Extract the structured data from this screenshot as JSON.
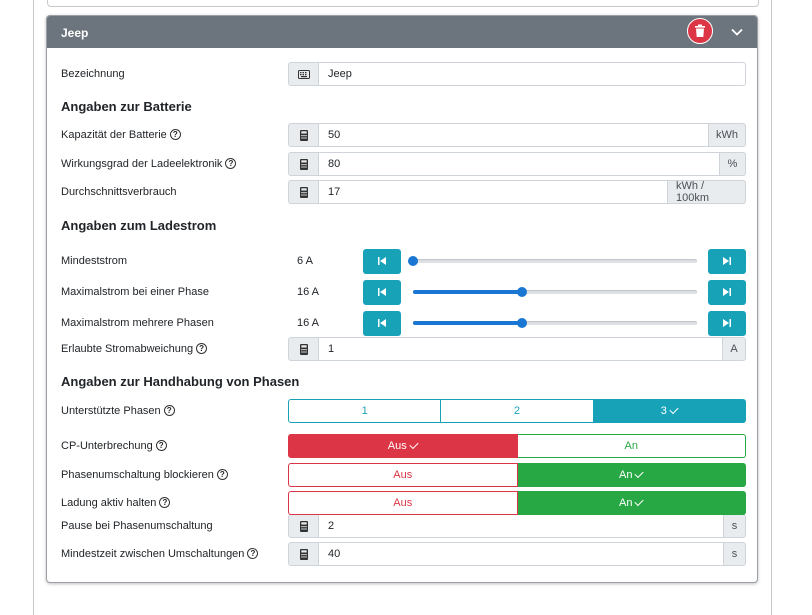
{
  "card": {
    "title": "Jeep"
  },
  "fields": {
    "bezeichnung": {
      "label": "Bezeichnung",
      "value": "Jeep"
    },
    "kapazitaet": {
      "label": "Kapazität der Batterie",
      "value": "50",
      "unit": "kWh"
    },
    "wirkungsgrad": {
      "label": "Wirkungsgrad der Ladeelektronik",
      "value": "80",
      "unit": "%"
    },
    "verbrauch": {
      "label": "Durchschnittsverbrauch",
      "value": "17",
      "unit": "kWh / 100km"
    },
    "abweichung": {
      "label": "Erlaubte Stromabweichung",
      "value": "1",
      "unit": "A"
    },
    "pause": {
      "label": "Pause bei Phasenumschaltung",
      "value": "2",
      "unit": "s"
    },
    "mindestzeit": {
      "label": "Mindestzeit zwischen Umschaltungen",
      "value": "40",
      "unit": "s"
    }
  },
  "sections": {
    "batterie": "Angaben zur Batterie",
    "ladestrom": "Angaben zum Ladestrom",
    "phasen": "Angaben zur Handhabung von Phasen"
  },
  "sliders": [
    {
      "label": "Mindeststrom",
      "display": "6 A",
      "min": 6,
      "max": 32,
      "value": 6
    },
    {
      "label": "Maximalstrom bei einer Phase",
      "display": "16 A",
      "min": 6,
      "max": 32,
      "value": 16
    },
    {
      "label": "Maximalstrom mehrere Phasen",
      "display": "16 A",
      "min": 6,
      "max": 32,
      "value": 16
    }
  ],
  "phases": {
    "label": "Unterstützte Phasen",
    "options": [
      "1",
      "2",
      "3"
    ],
    "selected": "3"
  },
  "toggles": [
    {
      "label": "CP-Unterbrechung",
      "off": "Aus",
      "on": "An",
      "state": "off"
    },
    {
      "label": "Phasenumschaltung blockieren",
      "off": "Aus",
      "on": "An",
      "state": "on"
    },
    {
      "label": "Ladung aktiv halten",
      "off": "Aus",
      "on": "An",
      "state": "on"
    }
  ],
  "colors": {
    "header": "#6c757d",
    "info": "#17a2b8",
    "danger": "#dc3545",
    "success": "#28a745",
    "slider": "#1976d2"
  }
}
